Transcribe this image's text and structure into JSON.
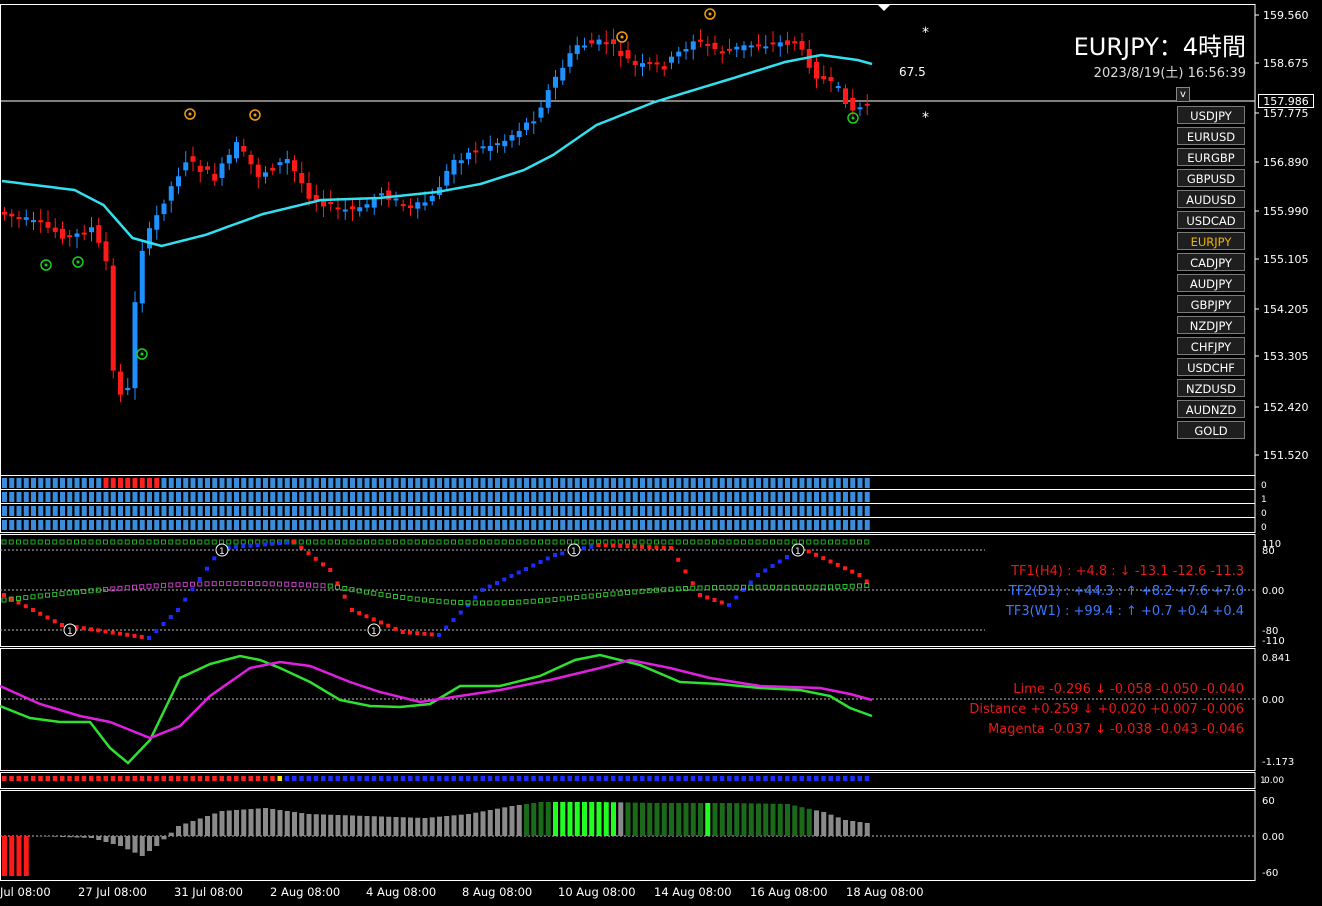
{
  "header": {
    "title": "EURJPY：4時間",
    "datetime": "2023/8/19(土) 16:56:39"
  },
  "price_axis": {
    "labels": [
      "159.560",
      "158.675",
      "157.775",
      "156.890",
      "155.990",
      "155.105",
      "154.205",
      "153.305",
      "152.420",
      "151.520"
    ],
    "current_price": "157.986"
  },
  "markers": {
    "level_label": "67.5",
    "star": "*"
  },
  "symbol_menu": {
    "toggle_label": "v",
    "items": [
      "USDJPY",
      "EURUSD",
      "EURGBP",
      "GBPUSD",
      "AUDUSD",
      "USDCAD",
      "EURJPY",
      "CADJPY",
      "AUDJPY",
      "GBPJPY",
      "NZDJPY",
      "CHFJPY",
      "USDCHF",
      "NZDUSD",
      "AUDNZD",
      "GOLD"
    ],
    "active": "EURJPY"
  },
  "strip_panels": {
    "axis_labels": [
      "0",
      "1",
      "0",
      "0"
    ]
  },
  "panel_tf": {
    "axis_labels": [
      "110",
      "80",
      "0.00",
      "-80",
      "-110"
    ],
    "lines": [
      {
        "text": "TF1(H4) : +4.8 : ↓ -13.1 -12.6 -11.3",
        "color": "#e81818"
      },
      {
        "text": "TF2(D1) : +44.3 : ↑ +8.2 +7.6 +7.0",
        "color": "#3c78ff"
      },
      {
        "text": "TF3(W1) : +99.4 : ↑ +0.7 +0.4 +0.4",
        "color": "#3c78ff"
      }
    ],
    "marker_label": "1"
  },
  "panel_osc": {
    "axis_labels": [
      "0.841",
      "0.00",
      "-1.173"
    ],
    "lines": [
      {
        "text": "Lime -0.296 ↓ -0.058 -0.050 -0.040",
        "color": "#e81818"
      },
      {
        "text": "Distance +0.259 ↓ +0.020 +0.007 -0.006",
        "color": "#e81818"
      },
      {
        "text": "Magenta -0.037 ↓ -0.038 -0.043 -0.046",
        "color": "#e81818"
      }
    ]
  },
  "panel_dots": {
    "axis_labels": [
      "1",
      "0.00"
    ]
  },
  "panel_hist": {
    "axis_labels": [
      "60",
      "0.00",
      "-60"
    ]
  },
  "time_axis": {
    "labels": [
      "Jul 08:00",
      "27 Jul 08:00",
      "31 Jul 08:00",
      "2 Aug 08:00",
      "4 Aug 08:00",
      "8 Aug 08:00",
      "10 Aug 08:00",
      "14 Aug 08:00",
      "16 Aug 08:00",
      "18 Aug 08:00"
    ]
  },
  "colors": {
    "up": "#1e90ff",
    "down": "#ff1a1a",
    "grid": "#ffffff",
    "accent": "#f0b400"
  }
}
